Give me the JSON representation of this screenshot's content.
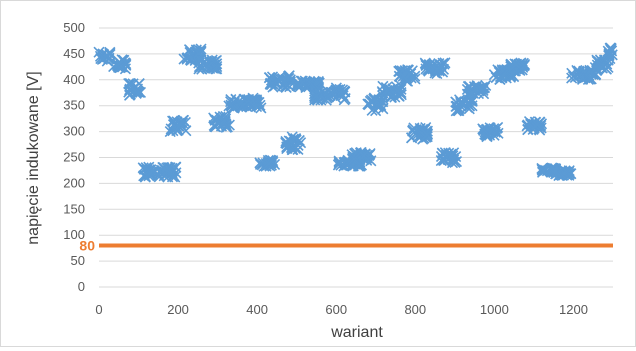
{
  "chart_data": {
    "type": "scatter",
    "xlabel": "wariant",
    "ylabel": "napięcie indukowane [V]",
    "xlim": [
      0,
      1300
    ],
    "ylim": [
      0,
      500
    ],
    "x_ticks": [
      0,
      200,
      400,
      600,
      800,
      1000,
      1200
    ],
    "y_ticks": [
      0,
      50,
      100,
      150,
      200,
      250,
      300,
      350,
      400,
      450,
      500
    ],
    "grid": true,
    "legend": "none",
    "marker": "x",
    "series": [
      {
        "color": "#5b9bd5",
        "clusters": [
          {
            "x": [
              0,
              30
            ],
            "y": [
              435,
              455
            ]
          },
          {
            "x": [
              35,
              70
            ],
            "y": [
              420,
              440
            ]
          },
          {
            "x": [
              75,
              105
            ],
            "y": [
              370,
              395
            ]
          },
          {
            "x": [
              110,
              195
            ],
            "y": [
              212,
              232
            ]
          },
          {
            "x": [
              180,
              220
            ],
            "y": [
              300,
              322
            ]
          },
          {
            "x": [
              215,
              260
            ],
            "y": [
              437,
              460
            ]
          },
          {
            "x": [
              250,
              300
            ],
            "y": [
              420,
              440
            ]
          },
          {
            "x": [
              290,
              330
            ],
            "y": [
              308,
              330
            ]
          },
          {
            "x": [
              325,
              410
            ],
            "y": [
              345,
              365
            ]
          },
          {
            "x": [
              405,
              445
            ],
            "y": [
              233,
              245
            ]
          },
          {
            "x": [
              430,
              485
            ],
            "y": [
              385,
              408
            ]
          },
          {
            "x": [
              470,
              510
            ],
            "y": [
              265,
              290
            ]
          },
          {
            "x": [
              500,
              560
            ],
            "y": [
              385,
              398
            ]
          },
          {
            "x": [
              545,
              625
            ],
            "y": [
              360,
              385
            ]
          },
          {
            "x": [
              605,
              665
            ],
            "y": [
              233,
              245
            ]
          },
          {
            "x": [
              640,
              690
            ],
            "y": [
              243,
              260
            ]
          },
          {
            "x": [
              680,
              720
            ],
            "y": [
              340,
              365
            ]
          },
          {
            "x": [
              715,
              765
            ],
            "y": [
              365,
              390
            ]
          },
          {
            "x": [
              755,
              800
            ],
            "y": [
              397,
              420
            ]
          },
          {
            "x": [
              790,
              835
            ],
            "y": [
              285,
              308
            ]
          },
          {
            "x": [
              825,
              875
            ],
            "y": [
              412,
              433
            ]
          },
          {
            "x": [
              865,
              905
            ],
            "y": [
              240,
              260
            ]
          },
          {
            "x": [
              900,
              945
            ],
            "y": [
              340,
              362
            ]
          },
          {
            "x": [
              930,
              980
            ],
            "y": [
              370,
              390
            ]
          },
          {
            "x": [
              970,
              1010
            ],
            "y": [
              290,
              310
            ]
          },
          {
            "x": [
              1000,
              1050
            ],
            "y": [
              400,
              420
            ]
          },
          {
            "x": [
              1035,
              1080
            ],
            "y": [
              415,
              433
            ]
          },
          {
            "x": [
              1080,
              1120
            ],
            "y": [
              303,
              320
            ]
          },
          {
            "x": [
              1120,
              1155
            ],
            "y": [
              220,
              230
            ]
          },
          {
            "x": [
              1150,
              1195
            ],
            "y": [
              215,
              225
            ]
          },
          {
            "x": [
              1195,
              1260
            ],
            "y": [
              400,
              420
            ]
          },
          {
            "x": [
              1255,
              1290
            ],
            "y": [
              420,
              440
            ]
          },
          {
            "x": [
              1285,
              1300
            ],
            "y": [
              440,
              462
            ]
          }
        ]
      },
      {
        "type": "line",
        "color": "#ed7d31",
        "x": [
          0,
          1300
        ],
        "y": [
          80,
          80
        ]
      }
    ],
    "annotations": [
      {
        "text": "80",
        "color": "#ed7d31",
        "y": 80
      }
    ]
  }
}
